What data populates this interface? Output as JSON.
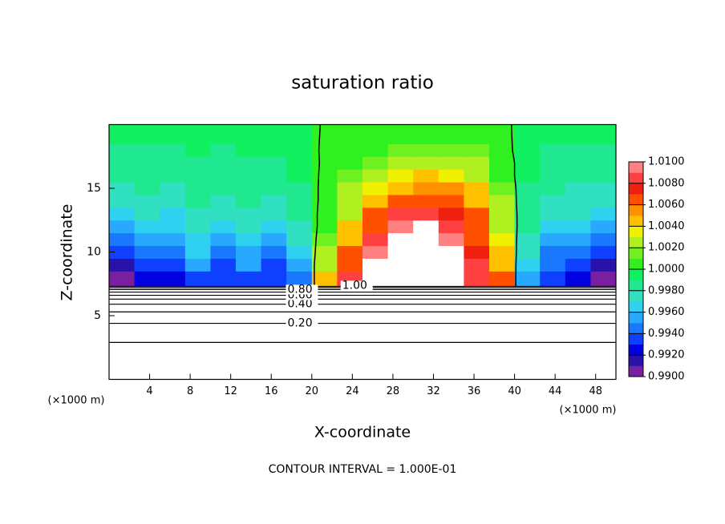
{
  "chart_data": {
    "type": "contour",
    "title": "saturation ratio",
    "xlabel": "X-coordinate",
    "ylabel": "Z-coordinate",
    "x_unit": "(×1000 m)",
    "footer": "CONTOUR INTERVAL = 1.000E-01",
    "xlim": [
      0,
      50
    ],
    "xticks": [
      4,
      8,
      12,
      16,
      20,
      24,
      28,
      32,
      36,
      40,
      44,
      48
    ],
    "ylim": [
      0,
      20
    ],
    "yticks": [
      5,
      10,
      15
    ],
    "field": {
      "x_edges": [
        0,
        2.5,
        5,
        7.5,
        10,
        12.5,
        15,
        17.5,
        20,
        22.5,
        25,
        27.5,
        30,
        32.5,
        35,
        37.5,
        40,
        42.5,
        45,
        47.5,
        50
      ],
      "z_edges": [
        7.3,
        8.5,
        9.5,
        10.5,
        11.5,
        12.5,
        13.5,
        14.5,
        15.5,
        16.5,
        17.5,
        18.5,
        20
      ],
      "values": [
        [
          0.9905,
          0.992,
          0.9925,
          0.993,
          0.993,
          0.9935,
          0.993,
          0.994,
          1.004,
          1.008,
          1.012,
          1.012,
          1.012,
          1.012,
          1.009,
          1.006,
          0.995,
          0.993,
          0.992,
          0.9905
        ],
        [
          0.9915,
          0.9935,
          0.993,
          0.995,
          0.9935,
          0.995,
          0.9935,
          0.9955,
          1.003,
          1.007,
          1.011,
          1.012,
          1.012,
          1.012,
          1.008,
          1.005,
          0.996,
          0.994,
          0.993,
          0.9915
        ],
        [
          0.993,
          0.9945,
          0.994,
          0.996,
          0.9945,
          0.9955,
          0.9945,
          0.9965,
          1.002,
          1.006,
          1.0095,
          1.012,
          1.012,
          1.011,
          1.0075,
          1.004,
          0.997,
          0.9945,
          0.994,
          0.993
        ],
        [
          0.9945,
          0.9955,
          0.995,
          0.9965,
          0.9955,
          0.9965,
          0.9955,
          0.997,
          1.0015,
          1.005,
          1.008,
          1.0115,
          1.012,
          1.0095,
          1.007,
          1.0035,
          0.9975,
          0.9955,
          0.9955,
          0.9945
        ],
        [
          0.9955,
          0.9965,
          0.996,
          0.997,
          0.9965,
          0.997,
          0.9965,
          0.9975,
          1.001,
          1.004,
          1.007,
          1.0095,
          1.0105,
          1.008,
          1.0065,
          1.003,
          0.998,
          0.9965,
          0.9965,
          0.9955
        ],
        [
          0.9965,
          0.997,
          0.9965,
          0.9975,
          0.997,
          0.9975,
          0.997,
          0.998,
          1.0008,
          1.003,
          1.006,
          1.008,
          1.0085,
          1.0075,
          1.006,
          1.0025,
          0.9983,
          0.997,
          0.997,
          0.9965
        ],
        [
          0.997,
          0.9975,
          0.997,
          0.998,
          0.9975,
          0.998,
          0.9975,
          0.9985,
          1.0005,
          1.0025,
          1.005,
          1.0068,
          1.007,
          1.0065,
          1.005,
          1.002,
          0.9985,
          0.9975,
          0.9972,
          0.997
        ],
        [
          0.9975,
          0.998,
          0.9975,
          0.9983,
          0.998,
          0.9983,
          0.998,
          0.9988,
          1.0004,
          1.002,
          1.0038,
          1.005,
          1.0055,
          1.0052,
          1.004,
          1.0015,
          0.9988,
          0.998,
          0.9975,
          0.9975
        ],
        [
          0.998,
          0.9983,
          0.998,
          0.9986,
          0.9984,
          0.9986,
          0.9985,
          0.999,
          1.0003,
          1.0015,
          1.0028,
          1.0035,
          1.004,
          1.0038,
          1.003,
          1.001,
          0.999,
          0.9983,
          0.998,
          0.998
        ],
        [
          0.9984,
          0.9986,
          0.9984,
          0.9988,
          0.9987,
          0.9988,
          0.9988,
          0.9992,
          1.0002,
          1.001,
          1.0018,
          1.0024,
          1.0026,
          1.0025,
          1.002,
          1.0008,
          0.9992,
          0.9986,
          0.9984,
          0.9984
        ],
        [
          0.9987,
          0.9988,
          0.9987,
          0.999,
          0.9989,
          0.999,
          0.999,
          0.9993,
          1.0002,
          1.0006,
          1.001,
          1.0014,
          1.0015,
          1.0015,
          1.0012,
          1.0005,
          0.9993,
          0.9988,
          0.9987,
          0.9987
        ],
        [
          0.999,
          0.999,
          0.999,
          0.9992,
          0.9991,
          0.9992,
          0.9992,
          0.9995,
          1.0001,
          1.0004,
          1.0006,
          1.0008,
          1.0009,
          1.0009,
          1.0007,
          1.0003,
          0.9995,
          0.9991,
          0.999,
          0.999
        ]
      ]
    },
    "colorbar": {
      "lim": [
        0.99,
        1.01
      ],
      "ticks": [
        {
          "value": 1.01,
          "label": "1.0100"
        },
        {
          "value": 1.008,
          "label": "1.0080"
        },
        {
          "value": 1.006,
          "label": "1.0060"
        },
        {
          "value": 1.004,
          "label": "1.0040"
        },
        {
          "value": 1.002,
          "label": "1.0020"
        },
        {
          "value": 1.0,
          "label": "1.0000"
        },
        {
          "value": 0.998,
          "label": "0.9980"
        },
        {
          "value": 0.996,
          "label": "0.9960"
        },
        {
          "value": 0.994,
          "label": "0.9940"
        },
        {
          "value": 0.992,
          "label": "0.9920"
        },
        {
          "value": 0.99,
          "label": "0.9900"
        }
      ],
      "colors": [
        "#7a1fa0",
        "#2a12a8",
        "#0000e0",
        "#1040ff",
        "#1a78ff",
        "#28a8ff",
        "#30d0f0",
        "#30e0c0",
        "#20e890",
        "#10f060",
        "#30f020",
        "#70f020",
        "#b0f020",
        "#f0f000",
        "#ffc000",
        "#ff9000",
        "#ff5000",
        "#f02010",
        "#ff4040",
        "#ff8080"
      ],
      "over_color": "#ffffff"
    },
    "contour_color": "#000000",
    "contours": [
      {
        "level": 0.1,
        "z": 2.9
      },
      {
        "level": 0.2,
        "z": 4.4,
        "label": "0.20"
      },
      {
        "level": 0.3,
        "z": 5.3
      },
      {
        "level": 0.4,
        "z": 5.9,
        "label": "0.40"
      },
      {
        "level": 0.5,
        "z": 6.3
      },
      {
        "level": 0.6,
        "z": 6.6,
        "label": "0.60"
      },
      {
        "level": 0.7,
        "z": 6.85
      },
      {
        "level": 0.8,
        "z": 7.05,
        "label": "0.80"
      },
      {
        "level": 0.9,
        "z": 7.2
      },
      {
        "level": 1.0,
        "z": 7.3,
        "label": "1.00"
      }
    ]
  }
}
